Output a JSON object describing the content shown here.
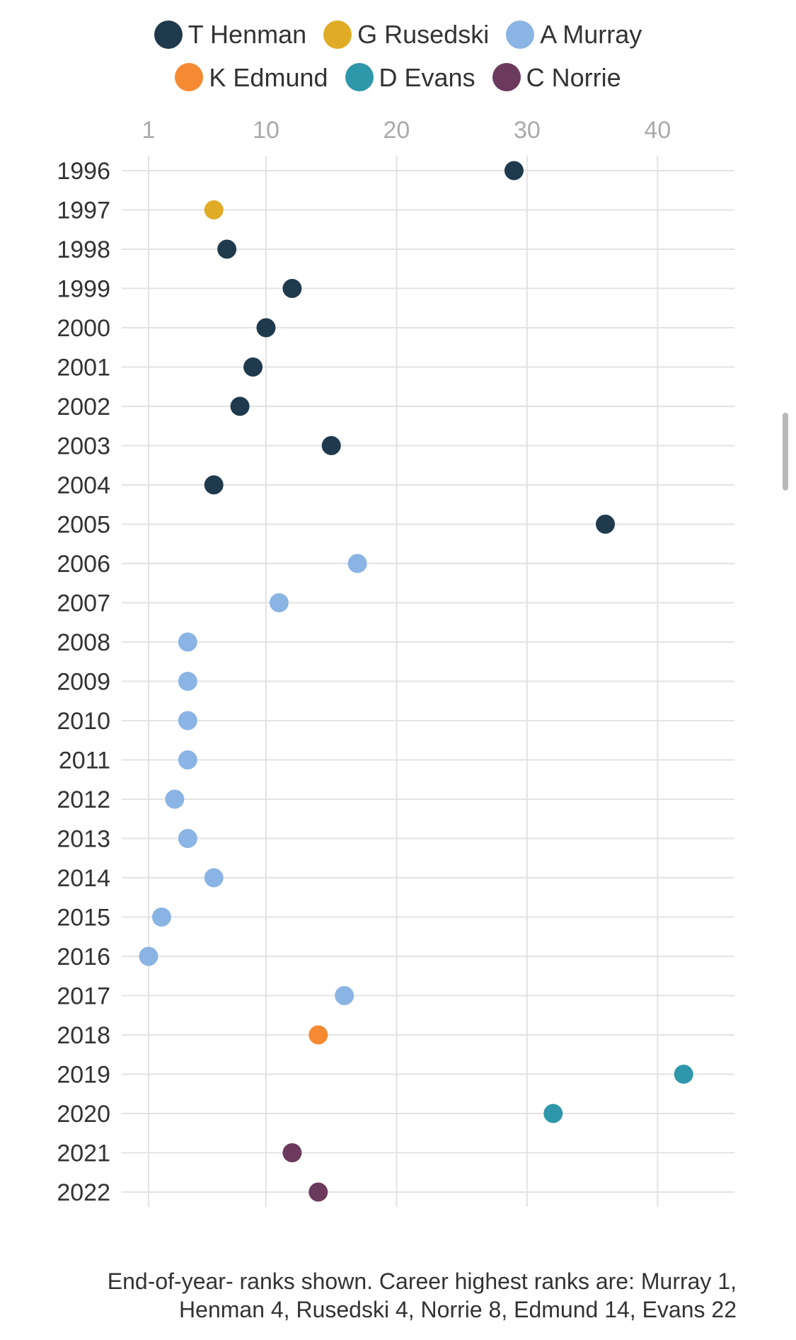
{
  "chart_data": {
    "type": "scatter",
    "legend": [
      {
        "name": "T Henman",
        "color": "#1f3a4d"
      },
      {
        "name": "G Rusedski",
        "color": "#e0ac26"
      },
      {
        "name": "A Murray",
        "color": "#8ab4e3"
      },
      {
        "name": "K Edmund",
        "color": "#f58a33"
      },
      {
        "name": "D Evans",
        "color": "#2f97aa"
      },
      {
        "name": "C Norrie",
        "color": "#6b3a5c"
      }
    ],
    "x_ticks": [
      1,
      10,
      20,
      30,
      40
    ],
    "xlim": [
      1,
      45
    ],
    "years": [
      "1996",
      "1997",
      "1998",
      "1999",
      "2000",
      "2001",
      "2002",
      "2003",
      "2004",
      "2005",
      "2006",
      "2007",
      "2008",
      "2009",
      "2010",
      "2011",
      "2012",
      "2013",
      "2014",
      "2015",
      "2016",
      "2017",
      "2018",
      "2019",
      "2020",
      "2021",
      "2022"
    ],
    "points": [
      {
        "year": "1996",
        "rank": 29,
        "player": "T Henman"
      },
      {
        "year": "1997",
        "rank": 6,
        "player": "G Rusedski"
      },
      {
        "year": "1998",
        "rank": 7,
        "player": "T Henman"
      },
      {
        "year": "1999",
        "rank": 12,
        "player": "T Henman"
      },
      {
        "year": "2000",
        "rank": 10,
        "player": "T Henman"
      },
      {
        "year": "2001",
        "rank": 9,
        "player": "T Henman"
      },
      {
        "year": "2002",
        "rank": 8,
        "player": "T Henman"
      },
      {
        "year": "2003",
        "rank": 15,
        "player": "T Henman"
      },
      {
        "year": "2004",
        "rank": 6,
        "player": "T Henman"
      },
      {
        "year": "2005",
        "rank": 36,
        "player": "T Henman"
      },
      {
        "year": "2006",
        "rank": 17,
        "player": "A Murray"
      },
      {
        "year": "2007",
        "rank": 11,
        "player": "A Murray"
      },
      {
        "year": "2008",
        "rank": 4,
        "player": "A Murray"
      },
      {
        "year": "2009",
        "rank": 4,
        "player": "A Murray"
      },
      {
        "year": "2010",
        "rank": 4,
        "player": "A Murray"
      },
      {
        "year": "2011",
        "rank": 4,
        "player": "A Murray"
      },
      {
        "year": "2012",
        "rank": 3,
        "player": "A Murray"
      },
      {
        "year": "2013",
        "rank": 4,
        "player": "A Murray"
      },
      {
        "year": "2014",
        "rank": 6,
        "player": "A Murray"
      },
      {
        "year": "2015",
        "rank": 2,
        "player": "A Murray"
      },
      {
        "year": "2016",
        "rank": 1,
        "player": "A Murray"
      },
      {
        "year": "2017",
        "rank": 16,
        "player": "A Murray"
      },
      {
        "year": "2018",
        "rank": 14,
        "player": "K Edmund"
      },
      {
        "year": "2019",
        "rank": 42,
        "player": "D Evans"
      },
      {
        "year": "2020",
        "rank": 32,
        "player": "D Evans"
      },
      {
        "year": "2021",
        "rank": 12,
        "player": "C Norrie"
      },
      {
        "year": "2022",
        "rank": 14,
        "player": "C Norrie"
      }
    ],
    "grid": true,
    "legend_position": "top"
  },
  "footnote": "End-of-year- ranks shown. Career highest ranks are: Murray 1, Henman 4, Rusedski 4, Norrie 8, Edmund 14, Evans 22"
}
